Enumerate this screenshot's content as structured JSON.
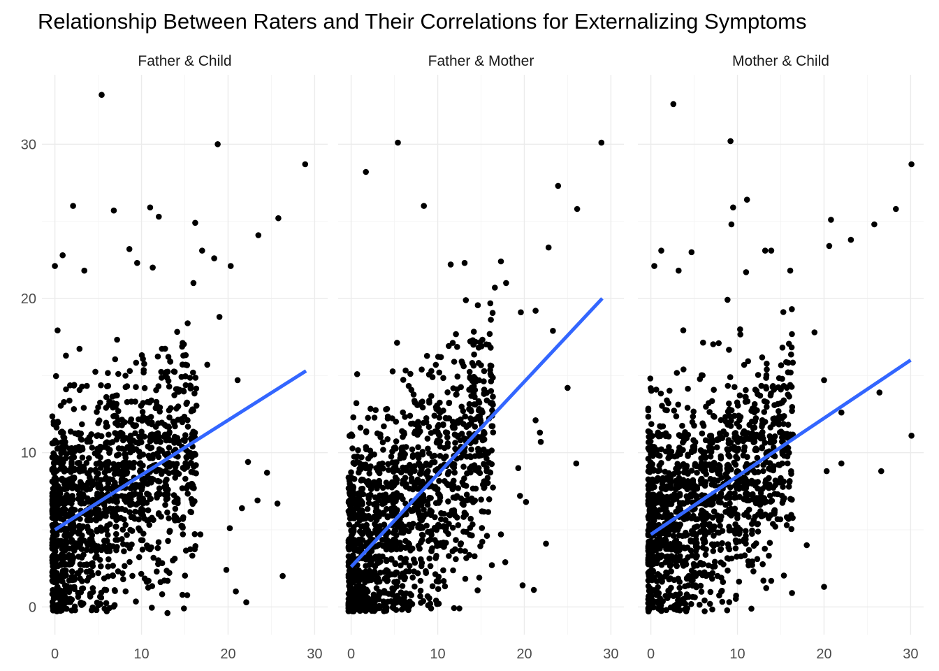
{
  "chart_data": {
    "type": "scatter",
    "title": "Relationship Between Raters and Their Correlations for Externalizing Symptoms",
    "xlabel": "",
    "ylabel": "",
    "xlim": [
      -1.5,
      31.5
    ],
    "ylim": [
      -1.8,
      34.5
    ],
    "x_ticks": [
      0,
      10,
      20,
      30
    ],
    "y_ticks": [
      0,
      10,
      20,
      30
    ],
    "grid": true,
    "legend": "none",
    "point_color": "#000000",
    "fit_color": "#3366ff",
    "panels": [
      {
        "label": "Father & Child",
        "fit": {
          "x": [
            0,
            29
          ],
          "y": [
            5.0,
            15.3
          ]
        },
        "sample": {
          "n": 1400,
          "seed": 11,
          "slope": 0.355,
          "intercept": 5.0
        },
        "points": [
          {
            "x": 5.4,
            "y": 33.2
          },
          {
            "x": 18.8,
            "y": 30.0
          },
          {
            "x": 28.9,
            "y": 28.7
          },
          {
            "x": 2.1,
            "y": 26.0
          },
          {
            "x": 6.8,
            "y": 25.7
          },
          {
            "x": 11.0,
            "y": 25.9
          },
          {
            "x": 12.0,
            "y": 25.3
          },
          {
            "x": 16.2,
            "y": 24.9
          },
          {
            "x": 25.8,
            "y": 25.2
          },
          {
            "x": 23.5,
            "y": 24.1
          },
          {
            "x": 8.6,
            "y": 23.2
          },
          {
            "x": 17.0,
            "y": 23.1
          },
          {
            "x": 18.4,
            "y": 22.6
          },
          {
            "x": 0.0,
            "y": 22.1
          },
          {
            "x": 0.9,
            "y": 22.8
          },
          {
            "x": 3.4,
            "y": 21.8
          },
          {
            "x": 20.3,
            "y": 22.1
          },
          {
            "x": 11.3,
            "y": 22.0
          },
          {
            "x": 9.5,
            "y": 22.3
          },
          {
            "x": 16.0,
            "y": 21.0
          },
          {
            "x": 19.0,
            "y": 18.8
          },
          {
            "x": 21.1,
            "y": 14.7
          },
          {
            "x": 22.3,
            "y": 9.4
          },
          {
            "x": 24.5,
            "y": 8.7
          },
          {
            "x": 25.7,
            "y": 6.7
          },
          {
            "x": 21.6,
            "y": 6.4
          },
          {
            "x": 26.3,
            "y": 2.0
          },
          {
            "x": 22.1,
            "y": 0.3
          },
          {
            "x": 20.9,
            "y": 1.0
          },
          {
            "x": 20.2,
            "y": 5.1
          },
          {
            "x": 19.8,
            "y": 2.4
          },
          {
            "x": 16.8,
            "y": 4.7
          },
          {
            "x": 14.9,
            "y": -0.1
          },
          {
            "x": 13.0,
            "y": -0.4
          },
          {
            "x": 23.4,
            "y": 6.9
          },
          {
            "x": 17.6,
            "y": 15.7
          }
        ]
      },
      {
        "label": "Father & Mother",
        "fit": {
          "x": [
            0,
            29
          ],
          "y": [
            2.6,
            20.0
          ]
        },
        "sample": {
          "n": 1400,
          "seed": 23,
          "slope": 0.6,
          "intercept": 2.6
        },
        "points": [
          {
            "x": 5.4,
            "y": 30.1
          },
          {
            "x": 28.9,
            "y": 30.1
          },
          {
            "x": 1.7,
            "y": 28.2
          },
          {
            "x": 23.9,
            "y": 27.3
          },
          {
            "x": 8.4,
            "y": 26.0
          },
          {
            "x": 26.1,
            "y": 25.8
          },
          {
            "x": 22.8,
            "y": 23.3
          },
          {
            "x": 13.1,
            "y": 22.3
          },
          {
            "x": 11.5,
            "y": 22.2
          },
          {
            "x": 17.3,
            "y": 22.4
          },
          {
            "x": 17.9,
            "y": 21.0
          },
          {
            "x": 16.6,
            "y": 20.7
          },
          {
            "x": 21.3,
            "y": 19.2
          },
          {
            "x": 19.6,
            "y": 19.1
          },
          {
            "x": 23.3,
            "y": 17.9
          },
          {
            "x": 25.0,
            "y": 14.2
          },
          {
            "x": 21.3,
            "y": 12.1
          },
          {
            "x": 21.8,
            "y": 11.3
          },
          {
            "x": 21.9,
            "y": 10.7
          },
          {
            "x": 26.0,
            "y": 9.3
          },
          {
            "x": 19.3,
            "y": 9.0
          },
          {
            "x": 19.5,
            "y": 7.2
          },
          {
            "x": 20.2,
            "y": 6.8
          },
          {
            "x": 17.3,
            "y": 4.7
          },
          {
            "x": 22.5,
            "y": 4.1
          },
          {
            "x": 19.8,
            "y": 1.4
          },
          {
            "x": 21.1,
            "y": 1.1
          },
          {
            "x": 12.5,
            "y": -0.1
          },
          {
            "x": 17.8,
            "y": 2.9
          }
        ]
      },
      {
        "label": "Mother & Child",
        "fit": {
          "x": [
            0,
            30
          ],
          "y": [
            4.7,
            16.0
          ]
        },
        "sample": {
          "n": 1400,
          "seed": 37,
          "slope": 0.377,
          "intercept": 4.7
        },
        "points": [
          {
            "x": 2.6,
            "y": 32.6
          },
          {
            "x": 9.2,
            "y": 30.2
          },
          {
            "x": 30.1,
            "y": 28.7
          },
          {
            "x": 11.1,
            "y": 26.4
          },
          {
            "x": 9.5,
            "y": 25.9
          },
          {
            "x": 9.3,
            "y": 24.8
          },
          {
            "x": 28.3,
            "y": 25.8
          },
          {
            "x": 20.8,
            "y": 25.1
          },
          {
            "x": 25.8,
            "y": 24.8
          },
          {
            "x": 23.1,
            "y": 23.8
          },
          {
            "x": 20.6,
            "y": 23.4
          },
          {
            "x": 1.2,
            "y": 23.1
          },
          {
            "x": 13.2,
            "y": 23.1
          },
          {
            "x": 13.9,
            "y": 23.1
          },
          {
            "x": 4.7,
            "y": 23.0
          },
          {
            "x": 0.4,
            "y": 22.1
          },
          {
            "x": 3.2,
            "y": 21.8
          },
          {
            "x": 16.1,
            "y": 21.8
          },
          {
            "x": 11.0,
            "y": 21.7
          },
          {
            "x": 20.0,
            "y": 14.7
          },
          {
            "x": 22.0,
            "y": 12.6
          },
          {
            "x": 22.0,
            "y": 9.3
          },
          {
            "x": 20.3,
            "y": 8.8
          },
          {
            "x": 26.6,
            "y": 8.8
          },
          {
            "x": 26.4,
            "y": 13.9
          },
          {
            "x": 30.1,
            "y": 11.1
          },
          {
            "x": 20.0,
            "y": 1.3
          },
          {
            "x": 16.3,
            "y": 0.9
          },
          {
            "x": 18.0,
            "y": 4.0
          },
          {
            "x": 18.9,
            "y": 17.8
          }
        ]
      }
    ]
  }
}
